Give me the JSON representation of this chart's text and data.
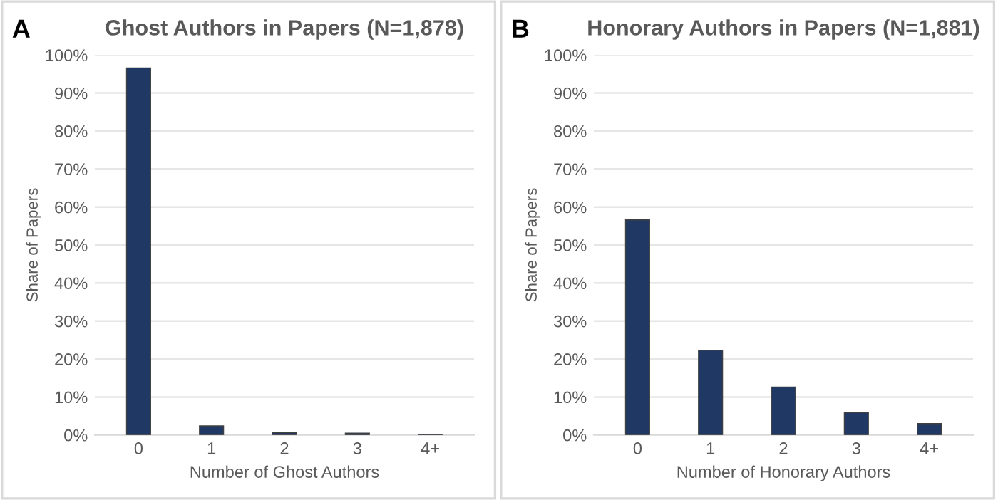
{
  "chart_data": [
    {
      "type": "bar",
      "title": "Ghost Authors in Papers (N=1,878)",
      "annotations": [
        "A"
      ],
      "xlabel": "Number of Ghost Authors",
      "ylabel": "Share of Papers",
      "categories": [
        "0",
        "1",
        "2",
        "3",
        "4+"
      ],
      "values": [
        96.6,
        2.4,
        0.6,
        0.5,
        0.2
      ],
      "color": "#203864",
      "ylim": [
        0,
        100
      ],
      "yticks": [
        {
          "value": 0,
          "label": "0%"
        },
        {
          "value": 10,
          "label": "10%"
        },
        {
          "value": 20,
          "label": "20%"
        },
        {
          "value": 30,
          "label": "30%"
        },
        {
          "value": 40,
          "label": "40%"
        },
        {
          "value": 50,
          "label": "50%"
        },
        {
          "value": 60,
          "label": "60%"
        },
        {
          "value": 70,
          "label": "70%"
        },
        {
          "value": 80,
          "label": "80%"
        },
        {
          "value": 90,
          "label": "90%"
        },
        {
          "value": 100,
          "label": "100%"
        }
      ],
      "grid": "y",
      "legend": false
    },
    {
      "type": "bar",
      "title": "Honorary Authors in Papers (N=1,881)",
      "annotations": [
        "B"
      ],
      "xlabel": "Number of Honorary Authors",
      "ylabel": "Share of Papers",
      "categories": [
        "0",
        "1",
        "2",
        "3",
        "4+"
      ],
      "values": [
        56.6,
        22.3,
        12.6,
        5.9,
        3.0
      ],
      "color": "#203864",
      "ylim": [
        0,
        100
      ],
      "yticks": [
        {
          "value": 0,
          "label": "0%"
        },
        {
          "value": 10,
          "label": "10%"
        },
        {
          "value": 20,
          "label": "20%"
        },
        {
          "value": 30,
          "label": "30%"
        },
        {
          "value": 40,
          "label": "40%"
        },
        {
          "value": 50,
          "label": "50%"
        },
        {
          "value": 60,
          "label": "60%"
        },
        {
          "value": 70,
          "label": "70%"
        },
        {
          "value": 80,
          "label": "80%"
        },
        {
          "value": 90,
          "label": "90%"
        },
        {
          "value": 100,
          "label": "100%"
        }
      ],
      "grid": "y",
      "legend": false
    }
  ]
}
